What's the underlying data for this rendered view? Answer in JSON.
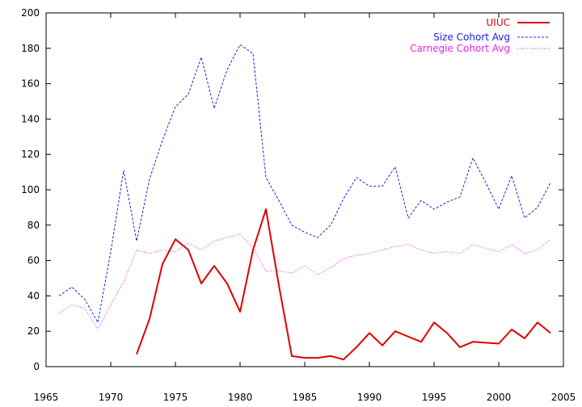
{
  "chart_data": {
    "type": "line",
    "xlim": [
      1965,
      2005
    ],
    "ylim": [
      0,
      200
    ],
    "xticks": [
      1965,
      1970,
      1975,
      1980,
      1985,
      1990,
      1995,
      2000,
      2005
    ],
    "yticks": [
      0,
      20,
      40,
      60,
      80,
      100,
      120,
      140,
      160,
      180,
      200
    ],
    "x_tick_labels": [
      "1965",
      "1970",
      "1975",
      "1980",
      "1985",
      "1990",
      "1995",
      "2000",
      "2005"
    ],
    "y_tick_labels": [
      "0",
      "20",
      "40",
      "60",
      "80",
      "100",
      "120",
      "140",
      "160",
      "180",
      "200"
    ],
    "grid": false,
    "legend_position": "top-right",
    "series": [
      {
        "name": "UIUC",
        "color": "#e00000",
        "style": "solid",
        "x": [
          1972,
          1973,
          1974,
          1975,
          1976,
          1977,
          1978,
          1979,
          1980,
          1981,
          1982,
          1983,
          1984,
          1985,
          1986,
          1987,
          1988,
          1989,
          1990,
          1991,
          1992,
          1993,
          1994,
          1995,
          1996,
          1997,
          1998,
          1999,
          2000,
          2001,
          2002,
          2003,
          2004
        ],
        "values": [
          7,
          27,
          58,
          72,
          66,
          47,
          57,
          47,
          31,
          66,
          89,
          46,
          6,
          5,
          5,
          6,
          4,
          11,
          19,
          12,
          20,
          17,
          14,
          25,
          19,
          11,
          14,
          13.5,
          13,
          21,
          16,
          25,
          19
        ]
      },
      {
        "name": "Size Cohort Avg",
        "color": "#2020e0",
        "style": "dashed",
        "x": [
          1966,
          1967,
          1968,
          1969,
          1970,
          1971,
          1972,
          1973,
          1974,
          1975,
          1976,
          1977,
          1978,
          1979,
          1980,
          1981,
          1982,
          1983,
          1984,
          1985,
          1986,
          1987,
          1988,
          1989,
          1990,
          1991,
          1992,
          1993,
          1994,
          1995,
          1996,
          1997,
          1998,
          1999,
          2000,
          2001,
          2002,
          2003,
          2004
        ],
        "values": [
          40,
          45,
          38,
          25,
          65,
          111,
          71,
          106,
          128,
          147,
          154,
          175,
          146,
          168,
          182,
          177,
          107,
          94,
          80,
          76,
          73,
          80,
          95,
          107,
          102,
          102,
          113,
          84,
          94,
          89,
          93,
          96,
          118,
          104,
          89,
          108,
          84,
          90,
          104
        ]
      },
      {
        "name": "Carnegie Cohort Avg",
        "color": "#f020f0",
        "style": "dotted",
        "x": [
          1966,
          1967,
          1968,
          1969,
          1970,
          1971,
          1972,
          1973,
          1974,
          1975,
          1976,
          1977,
          1978,
          1979,
          1980,
          1981,
          1982,
          1983,
          1984,
          1985,
          1986,
          1987,
          1988,
          1989,
          1990,
          1991,
          1992,
          1993,
          1994,
          1995,
          1996,
          1997,
          1998,
          1999,
          2000,
          2001,
          2002,
          2003,
          2004
        ],
        "values": [
          30,
          35,
          33,
          21,
          35,
          48,
          66,
          64,
          66,
          65,
          70,
          66,
          71,
          73,
          75,
          67,
          54,
          54,
          53,
          57,
          52,
          56,
          61,
          63,
          64,
          66,
          68,
          69,
          66,
          64,
          65,
          64,
          69,
          67,
          65,
          69,
          64,
          66,
          72
        ]
      }
    ]
  }
}
